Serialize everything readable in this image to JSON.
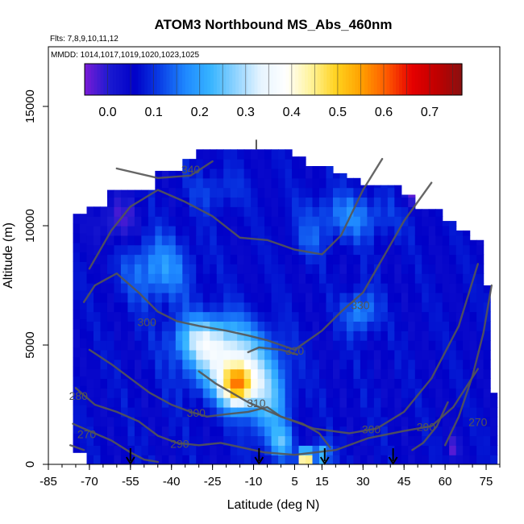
{
  "chart_data": {
    "type": "heatmap",
    "title": "ATOM3 Northbound MS_Abs_460nm",
    "flights_note": "Flts: 7,8,9,10,11,12",
    "dates_note": "MMDD: 1014,1017,1019,1020,1023,1025",
    "xlabel": "Latitude (deg N)",
    "ylabel": "Altitude (m)",
    "xlim": [
      -85,
      80
    ],
    "ylim": [
      0,
      17500
    ],
    "x_ticks": [
      -85,
      -70,
      -55,
      -40,
      -25,
      -10,
      5,
      15,
      30,
      45,
      60,
      75
    ],
    "x_tick_labels": [
      "-85",
      "-70",
      "-55",
      "-40",
      "-25",
      "-10",
      "5",
      "15",
      "30",
      "45",
      "60",
      "75"
    ],
    "y_ticks": [
      0,
      5000,
      10000,
      15000
    ],
    "y_tick_labels": [
      "0",
      "5000",
      "10000",
      "15000"
    ],
    "colorbar": {
      "min": -0.05,
      "max": 0.77,
      "ticks": [
        0.0,
        0.1,
        0.2,
        0.3,
        0.4,
        0.5,
        0.6,
        0.7
      ],
      "tick_labels": [
        "0.0",
        "0.1",
        "0.2",
        "0.3",
        "0.4",
        "0.5",
        "0.6",
        "0.7"
      ],
      "colors": [
        "#7a1bd6",
        "#1a1ad0",
        "#0000c8",
        "#0a3fe6",
        "#1e88ff",
        "#36b4ff",
        "#8fd3ff",
        "#e6f4ff",
        "#ffffff",
        "#fff39a",
        "#ffd21e",
        "#ffa000",
        "#ff5a00",
        "#e60000",
        "#c00000",
        "#8a1010"
      ]
    },
    "background_value": 0.06,
    "hotspots": [
      {
        "lat": -16,
        "alt": 3300,
        "value": 0.5,
        "rx": 6,
        "ry": 900
      },
      {
        "lat": -20,
        "alt": 4500,
        "value": 0.35,
        "rx": 14,
        "ry": 1500
      },
      {
        "lat": -30,
        "alt": 5300,
        "value": 0.22,
        "rx": 10,
        "ry": 900
      },
      {
        "lat": -45,
        "alt": 8200,
        "value": 0.2,
        "rx": 12,
        "ry": 1400
      },
      {
        "lat": -5,
        "alt": 2800,
        "value": 0.25,
        "rx": 8,
        "ry": 1800
      },
      {
        "lat": 0,
        "alt": 900,
        "value": 0.22,
        "rx": 4,
        "ry": 700
      },
      {
        "lat": 9,
        "alt": 300,
        "value": 0.75,
        "rx": 2,
        "ry": 300
      },
      {
        "lat": 15,
        "alt": 400,
        "value": 0.28,
        "rx": 3,
        "ry": 500
      },
      {
        "lat": 25,
        "alt": 10400,
        "value": 0.17,
        "rx": 16,
        "ry": 1000
      },
      {
        "lat": 29,
        "alt": 6400,
        "value": 0.2,
        "rx": 6,
        "ry": 900
      },
      {
        "lat": -24,
        "alt": 11500,
        "value": 0.12,
        "rx": 10,
        "ry": 900
      },
      {
        "lat": -60,
        "alt": 10200,
        "value": -0.03,
        "rx": 8,
        "ry": 1000
      },
      {
        "lat": 47,
        "alt": 11500,
        "value": -0.04,
        "rx": 4,
        "ry": 700
      },
      {
        "lat": 10,
        "alt": 9300,
        "value": 0.12,
        "rx": 6,
        "ry": 700
      },
      {
        "lat": 63,
        "alt": 700,
        "value": -0.03,
        "rx": 2,
        "ry": 500
      }
    ],
    "contour_labels": [
      {
        "text": "340",
        "lat": -33,
        "alt": 12200
      },
      {
        "text": "330",
        "lat": 29,
        "alt": 6500
      },
      {
        "text": "320",
        "lat": 5,
        "alt": 4600
      },
      {
        "text": "310",
        "lat": -9,
        "alt": 2400
      },
      {
        "text": "300",
        "lat": -49,
        "alt": 5800
      },
      {
        "text": "300",
        "lat": -31,
        "alt": 2000
      },
      {
        "text": "300",
        "lat": 33,
        "alt": 1300
      },
      {
        "text": "290",
        "lat": -37,
        "alt": 700
      },
      {
        "text": "290",
        "lat": 53,
        "alt": 1400
      },
      {
        "text": "280",
        "lat": -74,
        "alt": 2700
      },
      {
        "text": "270",
        "lat": -71,
        "alt": 1100
      },
      {
        "text": "270",
        "lat": 72,
        "alt": 1600
      }
    ],
    "arrow_markers": [
      -55,
      -8,
      16,
      41
    ]
  }
}
